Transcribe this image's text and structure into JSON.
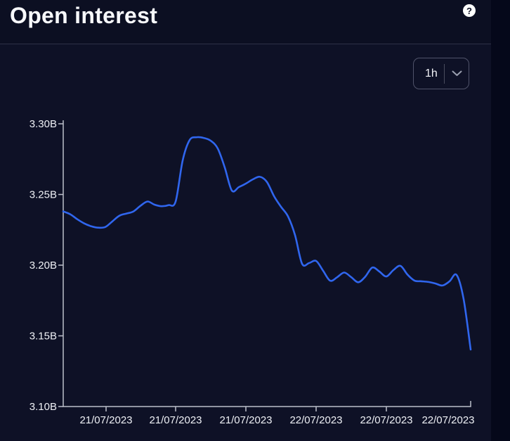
{
  "header": {
    "title": "Open interest",
    "help_glyph": "?"
  },
  "controls": {
    "timeframe_value": "1h"
  },
  "colors": {
    "page_bg": "#05081a",
    "header_bg": "#0c0f22",
    "card_bg": "#0e1126",
    "divider": "#2e3146",
    "text": "#f2f3f7",
    "axis": "#bcbfca",
    "line": "#3066ee",
    "button_border": "#50536a",
    "chevron": "#9ba0b0"
  },
  "chart_data": {
    "type": "line",
    "title": "Open interest",
    "timeframe": "1h",
    "xlabel": "",
    "ylabel": "",
    "unit": "B",
    "grid": false,
    "legend": "none",
    "ylim": [
      3.1,
      3.3
    ],
    "y_tick_labels": [
      "3.30B",
      "3.25B",
      "3.20B",
      "3.15B",
      "3.10B"
    ],
    "y_tick_values": [
      3.3,
      3.25,
      3.2,
      3.15,
      3.1
    ],
    "x_tick_labels": [
      "21/07/2023",
      "21/07/2023",
      "21/07/2023",
      "22/07/2023",
      "22/07/2023",
      "22/07/2023"
    ],
    "line_color": "#3066ee",
    "series": [
      {
        "name": "Open interest",
        "values": [
          3.238,
          3.236,
          3.2325,
          3.2295,
          3.2275,
          3.2265,
          3.227,
          3.231,
          3.235,
          3.2365,
          3.238,
          3.242,
          3.245,
          3.2428,
          3.2417,
          3.2425,
          3.245,
          3.274,
          3.2885,
          3.2905,
          3.29,
          3.288,
          3.2825,
          3.269,
          3.2528,
          3.2552,
          3.2577,
          3.2607,
          3.2625,
          3.2588,
          3.2489,
          3.2413,
          3.2345,
          3.2212,
          3.201,
          3.2015,
          3.203,
          3.196,
          3.189,
          3.1915,
          3.1948,
          3.1915,
          3.1879,
          3.1919,
          3.1983,
          3.1955,
          3.192,
          3.1965,
          3.1995,
          3.1934,
          3.1891,
          3.1886,
          3.1881,
          3.187,
          3.1856,
          3.1886,
          3.1931,
          3.1759,
          3.1403
        ]
      }
    ]
  }
}
